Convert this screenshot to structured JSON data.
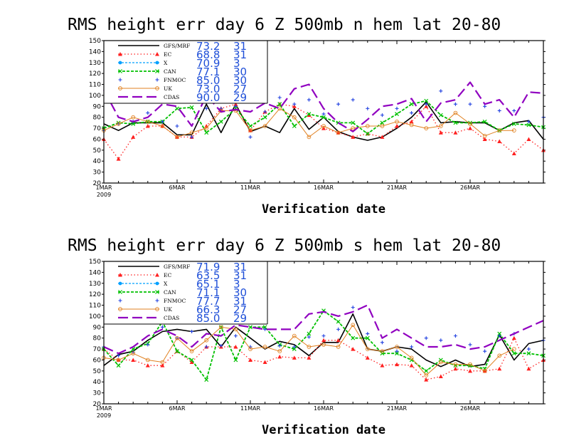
{
  "chart_data": [
    {
      "type": "line",
      "title": "RMS height err   day 6  Z 500mb   n hem   lat 20-80",
      "xlabel": "Verification date",
      "ylabel": "",
      "ylim": [
        20,
        150
      ],
      "yticks": [
        20,
        30,
        40,
        50,
        60,
        70,
        80,
        90,
        100,
        110,
        120,
        130,
        140,
        150
      ],
      "x_range": [
        1,
        31
      ],
      "xticks": [
        {
          "day": 1,
          "label": "1MAR",
          "sub": "2009"
        },
        {
          "day": 6,
          "label": "6MAR",
          "sub": ""
        },
        {
          "day": 11,
          "label": "11MAR",
          "sub": ""
        },
        {
          "day": 16,
          "label": "16MAR",
          "sub": ""
        },
        {
          "day": 21,
          "label": "21MAR",
          "sub": ""
        },
        {
          "day": 26,
          "label": "26MAR",
          "sub": ""
        }
      ],
      "legend_position": "top-left",
      "series": [
        {
          "name": "GFS/MRF",
          "mean": "73.2",
          "count": "31",
          "color": "#000000",
          "dash": "",
          "marker": "none",
          "width": 1.6,
          "values": [
            74,
            68,
            75,
            75,
            75,
            64,
            64,
            92,
            66,
            92,
            67,
            72,
            66,
            88,
            69,
            80,
            67,
            62,
            59,
            62,
            70,
            80,
            94,
            75,
            76,
            75,
            75,
            68,
            75,
            77,
            60
          ]
        },
        {
          "name": "EC",
          "mean": "68.8",
          "count": "31",
          "color": "#ff2020",
          "dash": "1.5 3",
          "marker": "triangle",
          "width": 1.3,
          "values": [
            60,
            42,
            62,
            72,
            72,
            62,
            62,
            72,
            88,
            92,
            68,
            85,
            92,
            90,
            82,
            70,
            66,
            62,
            65,
            62,
            72,
            76,
            90,
            66,
            66,
            70,
            60,
            58,
            47,
            60,
            50
          ]
        },
        {
          "name": "X",
          "mean": "70.9",
          "count": "3",
          "color": "#00a0ff",
          "dash": "3 2",
          "marker": "dot",
          "width": 1.3,
          "values": [
            null,
            null,
            null,
            null,
            null,
            null,
            null,
            null,
            null,
            null,
            null,
            null,
            null,
            null,
            null,
            null,
            null,
            null,
            null,
            null,
            null,
            null,
            null,
            null,
            null,
            null,
            null,
            null,
            null,
            null,
            null
          ]
        },
        {
          "name": "CAN",
          "mean": "77.1",
          "count": "30",
          "color": "#00c000",
          "dash": "4 2",
          "marker": "cross",
          "width": 1.8,
          "values": [
            70,
            75,
            74,
            76,
            76,
            88,
            89,
            66,
            76,
            88,
            72,
            80,
            92,
            72,
            83,
            80,
            75,
            75,
            65,
            75,
            83,
            92,
            95,
            82,
            75,
            75,
            76,
            68,
            74,
            73,
            71
          ]
        },
        {
          "name": "FNMOC",
          "mean": "85.0",
          "count": "30",
          "color": "#2040e0",
          "dash": "none",
          "marker": "plus",
          "width": 1.0,
          "values": [
            68,
            74,
            76,
            84,
            76,
            72,
            62,
            88,
            88,
            90,
            62,
            85,
            98,
            92,
            96,
            83,
            92,
            96,
            88,
            82,
            88,
            84,
            92,
            104,
            92,
            92,
            90,
            86,
            86,
            76,
            80
          ]
        },
        {
          "name": "UK",
          "mean": "73.0",
          "count": "27",
          "color": "#e08020",
          "dash": "",
          "marker": "circle",
          "width": 1.0,
          "values": [
            68,
            74,
            80,
            76,
            72,
            62,
            66,
            70,
            86,
            86,
            68,
            72,
            88,
            80,
            62,
            72,
            66,
            70,
            72,
            72,
            76,
            73,
            70,
            72,
            84,
            74,
            63,
            68,
            68,
            null,
            null
          ]
        },
        {
          "name": "CDAS",
          "mean": "90.0",
          "count": "29",
          "color": "#9000c0",
          "dash": "14 6",
          "marker": "none",
          "width": 2.2,
          "values": [
            105,
            80,
            76,
            80,
            92,
            90,
            72,
            100,
            85,
            87,
            85,
            93,
            88,
            106,
            110,
            88,
            75,
            67,
            78,
            90,
            92,
            97,
            76,
            93,
            96,
            112,
            92,
            96,
            80,
            103,
            102
          ]
        }
      ]
    },
    {
      "type": "line",
      "title": "RMS height err   day 6  Z 500mb   s hem   lat 20-80",
      "xlabel": "Verification date",
      "ylabel": "",
      "ylim": [
        20,
        150
      ],
      "yticks": [
        20,
        30,
        40,
        50,
        60,
        70,
        80,
        90,
        100,
        110,
        120,
        130,
        140,
        150
      ],
      "x_range": [
        1,
        31
      ],
      "xticks": [
        {
          "day": 1,
          "label": "1MAR",
          "sub": "2009"
        },
        {
          "day": 6,
          "label": "6MAR",
          "sub": ""
        },
        {
          "day": 11,
          "label": "11MAR",
          "sub": ""
        },
        {
          "day": 16,
          "label": "16MAR",
          "sub": ""
        },
        {
          "day": 21,
          "label": "21MAR",
          "sub": ""
        },
        {
          "day": 26,
          "label": "26MAR",
          "sub": ""
        }
      ],
      "legend_position": "top-left",
      "series": [
        {
          "name": "GFS/MRF",
          "mean": "71.9",
          "count": "31",
          "color": "#000000",
          "dash": "",
          "marker": "none",
          "width": 1.6,
          "values": [
            55,
            65,
            68,
            78,
            86,
            88,
            86,
            88,
            72,
            90,
            80,
            70,
            77,
            74,
            64,
            76,
            76,
            102,
            70,
            68,
            72,
            70,
            60,
            54,
            60,
            54,
            56,
            83,
            60,
            75,
            78
          ]
        },
        {
          "name": "EC",
          "mean": "63.5",
          "count": "31",
          "color": "#ff2020",
          "dash": "1.5 3",
          "marker": "triangle",
          "width": 1.3,
          "values": [
            70,
            60,
            60,
            55,
            55,
            68,
            58,
            72,
            72,
            72,
            60,
            58,
            63,
            62,
            62,
            78,
            78,
            70,
            62,
            55,
            56,
            55,
            42,
            45,
            52,
            50,
            50,
            52,
            80,
            52,
            60
          ]
        },
        {
          "name": "X",
          "mean": "65.1",
          "count": "3",
          "color": "#00a0ff",
          "dash": "3 2",
          "marker": "dot",
          "width": 1.3,
          "values": [
            null,
            null,
            null,
            null,
            null,
            null,
            null,
            null,
            null,
            null,
            null,
            null,
            null,
            null,
            null,
            null,
            null,
            null,
            null,
            null,
            null,
            null,
            null,
            null,
            null,
            null,
            null,
            null,
            null,
            null,
            null
          ]
        },
        {
          "name": "CAN",
          "mean": "71.1",
          "count": "30",
          "color": "#00c000",
          "dash": "4 2",
          "marker": "cross",
          "width": 1.8,
          "values": [
            70,
            55,
            70,
            75,
            95,
            68,
            60,
            42,
            90,
            60,
            90,
            90,
            74,
            70,
            84,
            105,
            95,
            80,
            80,
            66,
            66,
            60,
            50,
            60,
            55,
            55,
            52,
            84,
            66,
            66,
            64
          ]
        },
        {
          "name": "FNMOC",
          "mean": "77.7",
          "count": "31",
          "color": "#2040e0",
          "dash": "none",
          "marker": "plus",
          "width": 1.0,
          "values": [
            72,
            64,
            67,
            74,
            90,
            80,
            86,
            72,
            73,
            82,
            72,
            88,
            73,
            72,
            81,
            82,
            88,
            108,
            84,
            76,
            68,
            72,
            80,
            78,
            82,
            74,
            68,
            82,
            84,
            70,
            78
          ]
        },
        {
          "name": "UK",
          "mean": "66.3",
          "count": "27",
          "color": "#e08020",
          "dash": "",
          "marker": "circle",
          "width": 1.0,
          "values": [
            62,
            60,
            66,
            60,
            58,
            80,
            68,
            78,
            90,
            88,
            70,
            72,
            68,
            82,
            72,
            74,
            72,
            92,
            70,
            68,
            72,
            62,
            46,
            58,
            56,
            56,
            50,
            64,
            70,
            null,
            null
          ]
        },
        {
          "name": "CDAS",
          "mean": "85.0",
          "count": "29",
          "color": "#9000c0",
          "dash": "14 6",
          "marker": "none",
          "width": 2.2,
          "values": [
            72,
            66,
            72,
            82,
            88,
            82,
            72,
            84,
            82,
            92,
            90,
            88,
            88,
            88,
            102,
            104,
            100,
            104,
            110,
            80,
            88,
            80,
            72,
            72,
            74,
            70,
            72,
            78,
            84,
            90,
            96
          ]
        }
      ]
    }
  ]
}
